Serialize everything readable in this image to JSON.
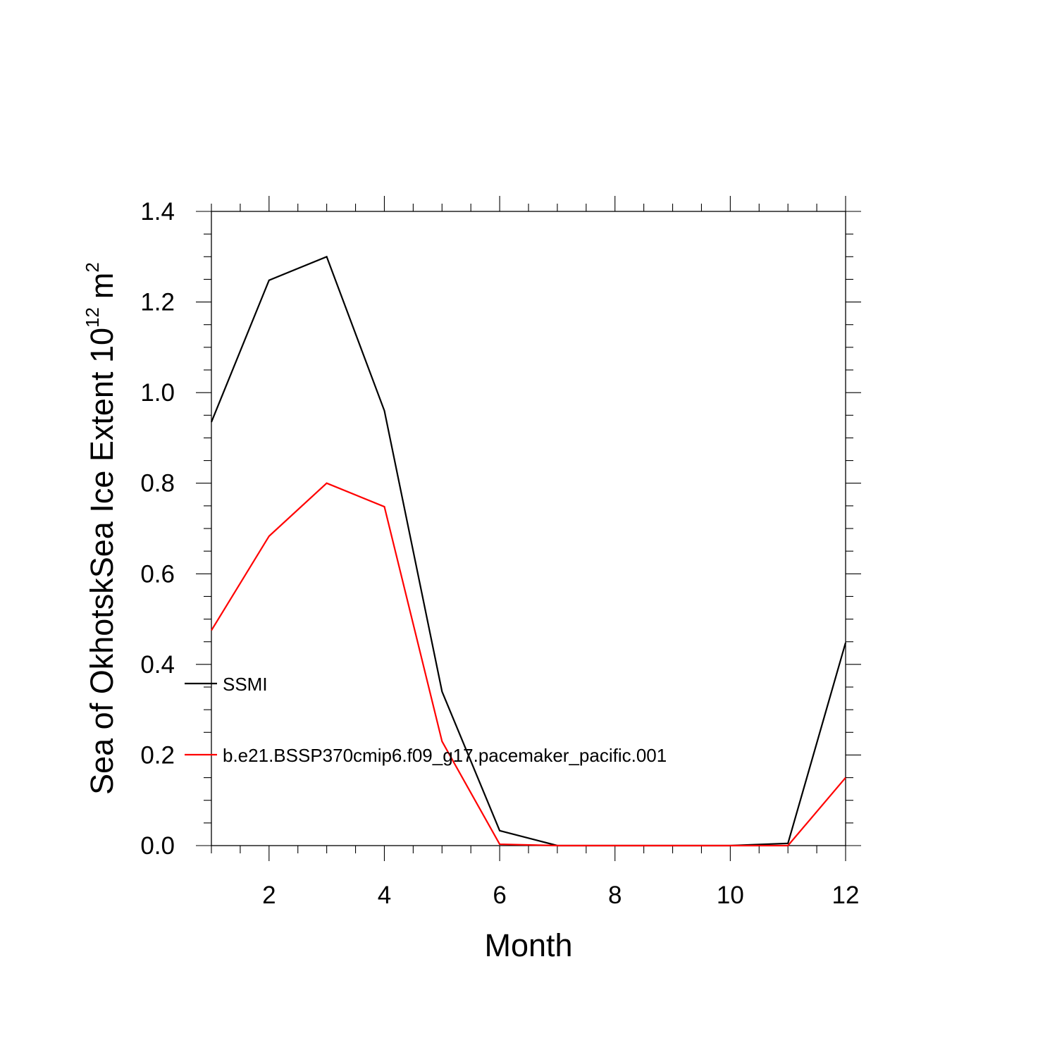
{
  "chart_data": {
    "type": "line",
    "title": "",
    "xlabel": "Month",
    "ylabel": {
      "prefix": "Sea of OkhotskSea Ice Extent 10",
      "exponent": "12",
      "unit": "m",
      "unit_exponent": "2"
    },
    "xlim": [
      1,
      12
    ],
    "ylim": [
      0,
      1.4
    ],
    "xticks": [
      2,
      4,
      6,
      8,
      10,
      12
    ],
    "yticks": [
      "0.0",
      "0.2",
      "0.4",
      "0.6",
      "0.8",
      "1.0",
      "1.2",
      "1.4"
    ],
    "grid": false,
    "legend_position": "left, inside",
    "x": [
      1,
      2,
      3,
      4,
      5,
      6,
      7,
      8,
      9,
      10,
      11,
      12
    ],
    "series": [
      {
        "name": "SSMI",
        "color": "#000000",
        "values": [
          0.935,
          1.248,
          1.3,
          0.96,
          0.34,
          0.033,
          0.0,
          0.0,
          0.0,
          0.0,
          0.005,
          0.448
        ]
      },
      {
        "name": "b.e21.BSSP370cmip6.f09_g17.pacemaker_pacific.001",
        "color": "#ff0000",
        "values": [
          0.475,
          0.683,
          0.8,
          0.748,
          0.23,
          0.003,
          0.0,
          0.0,
          0.0,
          0.0,
          0.0,
          0.15
        ]
      }
    ]
  }
}
